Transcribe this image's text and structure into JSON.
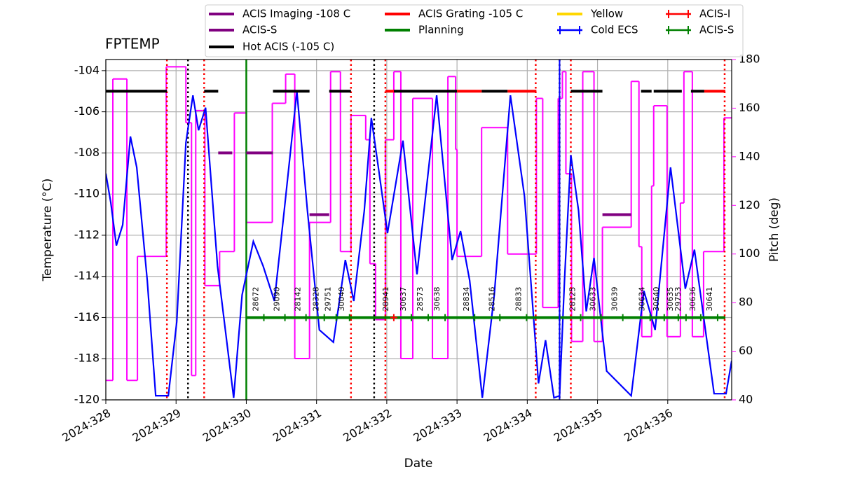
{
  "chart_data": {
    "type": "line",
    "title": "FPTEMP",
    "xlabel": "Date",
    "ylabel": "Temperature (°C)",
    "y2label": "Pitch (deg)",
    "xlim": [
      328,
      336.91
    ],
    "ylim": [
      -120,
      -103.46
    ],
    "y2lim": [
      40,
      180
    ],
    "xticks": [
      {
        "value": 328,
        "label": "2024:328"
      },
      {
        "value": 329,
        "label": "2024:329"
      },
      {
        "value": 330,
        "label": "2024:330"
      },
      {
        "value": 331,
        "label": "2024:331"
      },
      {
        "value": 332,
        "label": "2024:332"
      },
      {
        "value": 333,
        "label": "2024:333"
      },
      {
        "value": 334,
        "label": "2024:334"
      },
      {
        "value": 335,
        "label": "2024:335"
      },
      {
        "value": 336,
        "label": "2024:336"
      }
    ],
    "yticks": [
      -120,
      -118,
      -116,
      -114,
      -112,
      -110,
      -108,
      -106,
      -104
    ],
    "y2ticks": [
      40,
      60,
      80,
      100,
      120,
      140,
      160,
      180
    ],
    "grid": true,
    "temperature": {
      "color": "#0000ff",
      "x": [
        328.0,
        328.07,
        328.15,
        328.24,
        328.35,
        328.44,
        328.59,
        328.71,
        328.89,
        329.01,
        329.14,
        329.24,
        329.32,
        329.42,
        329.59,
        329.82,
        329.94,
        330.1,
        330.24,
        330.4,
        330.54,
        330.72,
        330.87,
        331.04,
        331.24,
        331.41,
        331.53,
        331.68,
        331.78,
        331.88,
        332.01,
        332.23,
        332.43,
        332.71,
        332.93,
        333.05,
        333.18,
        333.36,
        333.53,
        333.76,
        333.96,
        334.16,
        334.26,
        334.38,
        334.46,
        334.53,
        334.62,
        334.73,
        334.84,
        334.95,
        335.13,
        335.48,
        335.66,
        335.82,
        336.04,
        336.25,
        336.38,
        336.66,
        336.83,
        336.91
      ],
      "values": [
        -109.0,
        -110.4,
        -112.5,
        -111.5,
        -107.2,
        -108.7,
        -114.2,
        -119.8,
        -119.8,
        -116.2,
        -107.5,
        -105.2,
        -106.9,
        -105.8,
        -113.5,
        -119.9,
        -114.9,
        -112.3,
        -113.5,
        -115.2,
        -110.8,
        -105.0,
        -110.8,
        -116.6,
        -117.2,
        -113.2,
        -115.2,
        -110.8,
        -106.3,
        -108.7,
        -111.9,
        -107.4,
        -113.9,
        -105.2,
        -113.2,
        -111.8,
        -114.2,
        -119.9,
        -114.9,
        -105.2,
        -110.1,
        -119.2,
        -117.1,
        -119.9,
        -119.8,
        -114.2,
        -108.1,
        -110.8,
        -115.7,
        -113.1,
        -118.6,
        -119.8,
        -114.7,
        -116.6,
        -108.7,
        -114.6,
        -112.7,
        -119.7,
        -119.7,
        -118.1
      ]
    },
    "pitch": {
      "color": "#ff00ff",
      "axis": "y2",
      "step": "post",
      "x": [
        328.0,
        328.1,
        328.3,
        328.45,
        328.86,
        329.14,
        329.22,
        329.28,
        329.41,
        329.62,
        329.83,
        330.0,
        330.37,
        330.56,
        330.69,
        330.9,
        331.2,
        331.34,
        331.49,
        331.7,
        331.76,
        331.84,
        331.98,
        332.1,
        332.2,
        332.37,
        332.65,
        332.87,
        332.98,
        333.0,
        333.35,
        333.72,
        334.13,
        334.22,
        334.44,
        334.5,
        334.55,
        334.63,
        334.79,
        334.95,
        335.07,
        335.48,
        335.59,
        335.63,
        335.77,
        335.8,
        335.99,
        336.18,
        336.23,
        336.35,
        336.51,
        336.8,
        336.91
      ],
      "values": [
        48,
        172,
        48,
        99,
        177,
        154,
        50,
        159,
        87,
        101,
        158,
        113,
        162,
        174,
        57,
        113,
        175,
        101,
        157,
        147,
        96,
        73,
        147,
        175,
        57,
        164,
        57,
        173,
        143,
        99,
        152,
        100,
        164,
        78,
        164,
        175,
        133,
        64,
        175,
        64,
        111,
        171,
        103,
        66,
        128,
        161,
        66,
        121,
        175,
        66,
        101,
        156,
        156
      ]
    },
    "series": [
      {
        "name": "ACIS Imaging -108 C",
        "color": "#800080",
        "value": -108,
        "segments": [
          [
            329.6,
            329.8
          ],
          [
            330.0,
            330.38
          ]
        ]
      },
      {
        "name": "ACIS-S",
        "color": "#800080",
        "value": -111,
        "segments": [
          [
            330.9,
            331.18
          ],
          [
            335.07,
            335.48
          ]
        ]
      },
      {
        "name": "Hot ACIS (-105 C)",
        "color": "#000000",
        "value": -105,
        "segments": [
          [
            328.0,
            328.87
          ],
          [
            329.4,
            329.6
          ],
          [
            330.38,
            330.9
          ],
          [
            331.18,
            331.49
          ],
          [
            332.1,
            333.0
          ],
          [
            333.35,
            333.72
          ],
          [
            334.62,
            335.07
          ],
          [
            335.62,
            335.77
          ],
          [
            335.8,
            336.2
          ],
          [
            336.33,
            336.52
          ]
        ]
      },
      {
        "name": "ACIS Grating -105 C",
        "color": "#ff0000",
        "value": -105,
        "segments": [
          [
            331.98,
            332.1
          ],
          [
            333.0,
            333.35
          ],
          [
            333.72,
            334.13
          ],
          [
            336.52,
            336.82
          ]
        ]
      },
      {
        "name": "Planning",
        "color": "#008000",
        "value": -116,
        "segments": [
          [
            330.0,
            336.82
          ]
        ]
      },
      {
        "name": "Yellow",
        "color": "#ffd700",
        "segments": []
      },
      {
        "name": "Cold ECS",
        "color": "#0000ff",
        "marker": "errorbar",
        "x": [
          334.46
        ]
      },
      {
        "name": "ACIS-I",
        "color": "#ff0000",
        "marker": "errorbar",
        "x": [
          332.1
        ],
        "values": [
          -116
        ],
        "labels": [
          "28941"
        ]
      },
      {
        "name": "ACIS-S",
        "color": "#008000",
        "marker": "errorbar",
        "x": [
          330.25,
          330.55,
          330.85,
          331.11,
          331.28,
          331.47,
          332.35,
          332.59,
          332.83,
          333.25,
          333.61,
          333.99,
          334.76,
          335.05,
          335.36,
          335.75,
          335.95,
          336.15,
          336.26,
          336.47,
          336.71
        ],
        "values": [
          -116,
          -116,
          -116,
          -116,
          -116,
          -116,
          -116,
          -116,
          -116,
          -116,
          -116,
          -116,
          -116,
          -116,
          -116,
          -116,
          -116,
          -116,
          -116,
          -116,
          -116
        ],
        "labels": [
          "28672",
          "29090",
          "28142",
          "28328",
          "29751",
          "30040",
          "30637",
          "28573",
          "30638",
          "28834",
          "28516",
          "28833",
          "28125",
          "30633",
          "30639",
          "30634",
          "30640",
          "30635",
          "29753",
          "30636",
          "30641"
        ]
      }
    ],
    "vlines": [
      {
        "color": "#000000",
        "dash": "dotted",
        "x": [
          329.17,
          331.82,
          334.46
        ]
      },
      {
        "color": "#ff0000",
        "dash": "dotted",
        "x": [
          328.87,
          329.4,
          331.49,
          331.98,
          334.12,
          334.62,
          336.81
        ]
      },
      {
        "color": "#008000",
        "dash": "solid",
        "x": [
          330.0
        ]
      }
    ]
  }
}
